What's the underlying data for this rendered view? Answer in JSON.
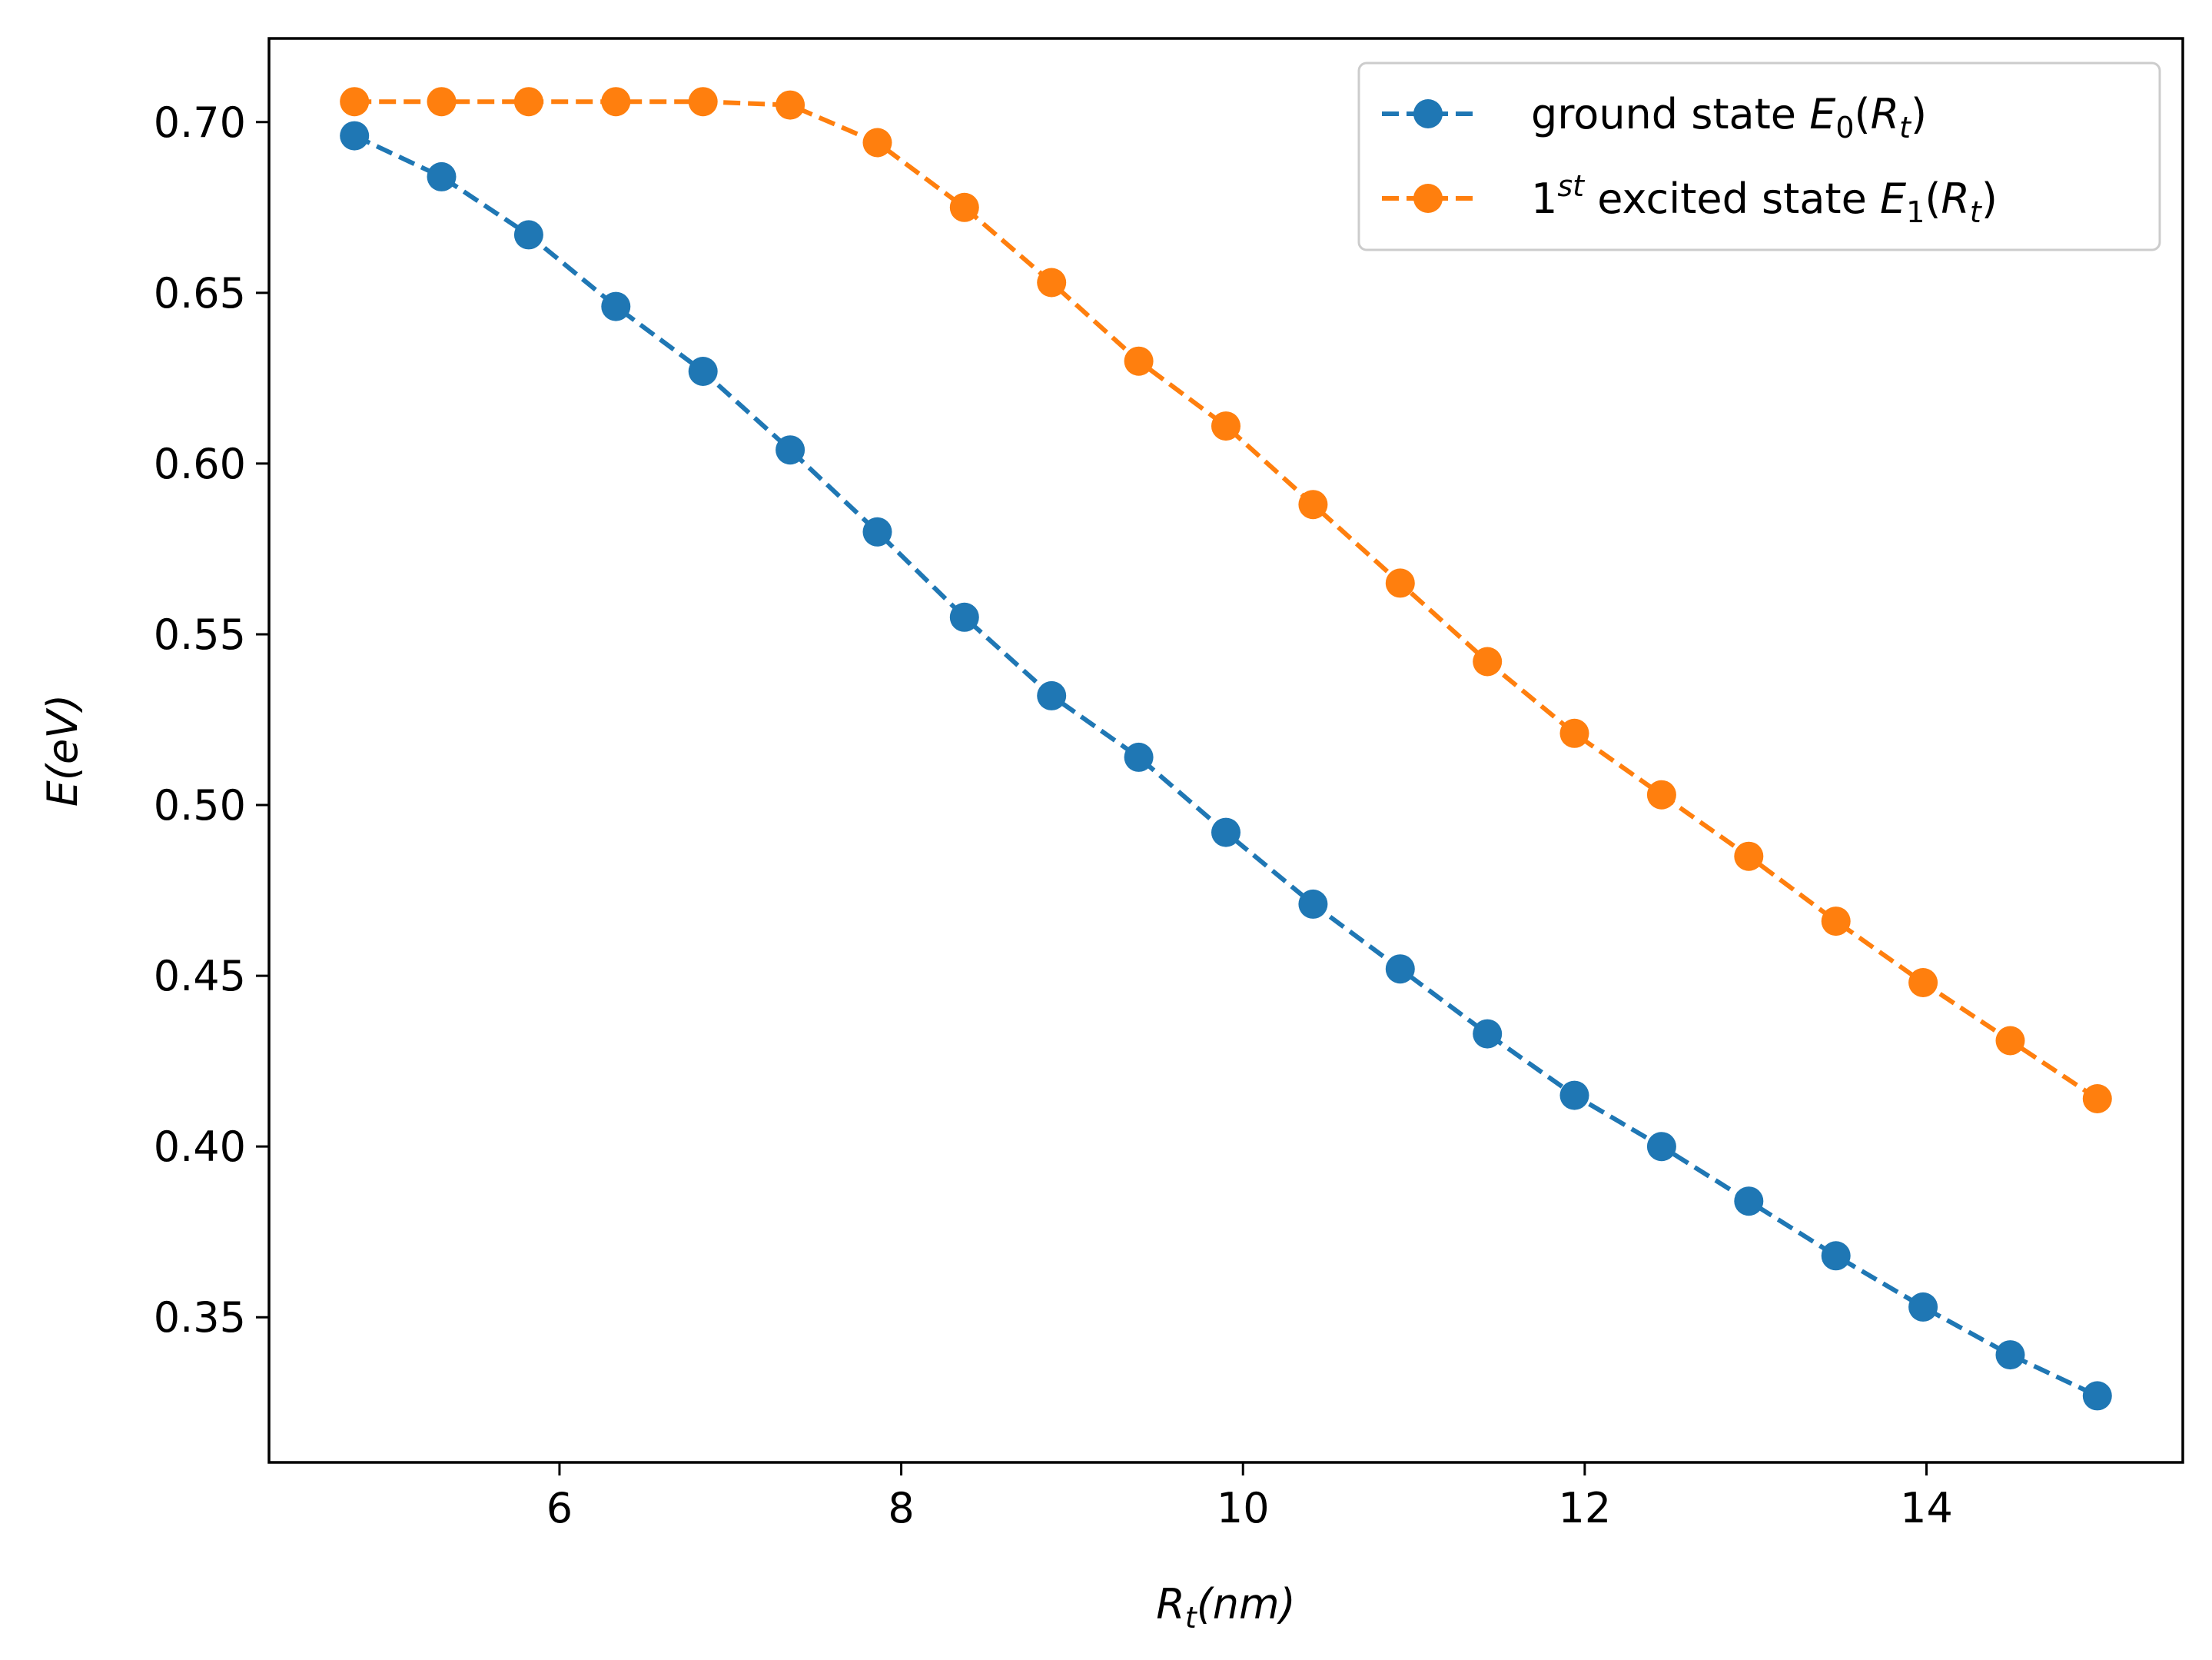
{
  "chart_data": {
    "type": "line",
    "title": "",
    "xlabel": {
      "main": "R",
      "sub": "t",
      "rest": "(nm)"
    },
    "ylabel": "E(eV)",
    "xlim": [
      4.3,
      15.5
    ],
    "ylim": [
      0.3075,
      0.7245
    ],
    "xticks": [
      6,
      8,
      10,
      12,
      14
    ],
    "xtick_labels": [
      "6",
      "8",
      "10",
      "12",
      "14"
    ],
    "yticks": [
      0.35,
      0.4,
      0.45,
      0.5,
      0.55,
      0.6,
      0.65,
      0.7
    ],
    "ytick_labels": [
      "0.35",
      "0.40",
      "0.45",
      "0.50",
      "0.55",
      "0.60",
      "0.65",
      "0.70"
    ],
    "grid": false,
    "legend_position": "top-right",
    "x": [
      4.8,
      5.31,
      5.82,
      6.33,
      6.84,
      7.35,
      7.86,
      8.37,
      8.88,
      9.39,
      9.9,
      10.41,
      10.92,
      11.43,
      11.94,
      12.45,
      12.96,
      13.47,
      13.98,
      14.49,
      15.0
    ],
    "series": [
      {
        "name": "ground state E0(Rt)",
        "legend": {
          "text": "ground state ",
          "var": "E",
          "sub": "0",
          "arg": "R",
          "argsub": "t"
        },
        "color": "#1f77b4",
        "marker": "circle",
        "linestyle": "dashed",
        "values": [
          0.696,
          0.684,
          0.667,
          0.646,
          0.627,
          0.604,
          0.58,
          0.555,
          0.532,
          0.514,
          0.492,
          0.471,
          0.452,
          0.433,
          0.415,
          0.4,
          0.384,
          0.368,
          0.353,
          0.339,
          0.327
        ]
      },
      {
        "name": "1st excited state E1(Rt)",
        "legend": {
          "pre": "1",
          "sup": "st",
          "text": " excited state ",
          "var": "E",
          "sub": "1",
          "arg": "R",
          "argsub": "t"
        },
        "color": "#ff7f0e",
        "marker": "circle",
        "linestyle": "dashed",
        "values": [
          0.706,
          0.706,
          0.706,
          0.706,
          0.706,
          0.705,
          0.694,
          0.675,
          0.653,
          0.63,
          0.611,
          0.588,
          0.565,
          0.542,
          0.521,
          0.503,
          0.485,
          0.466,
          0.448,
          0.431,
          0.414
        ]
      }
    ]
  }
}
